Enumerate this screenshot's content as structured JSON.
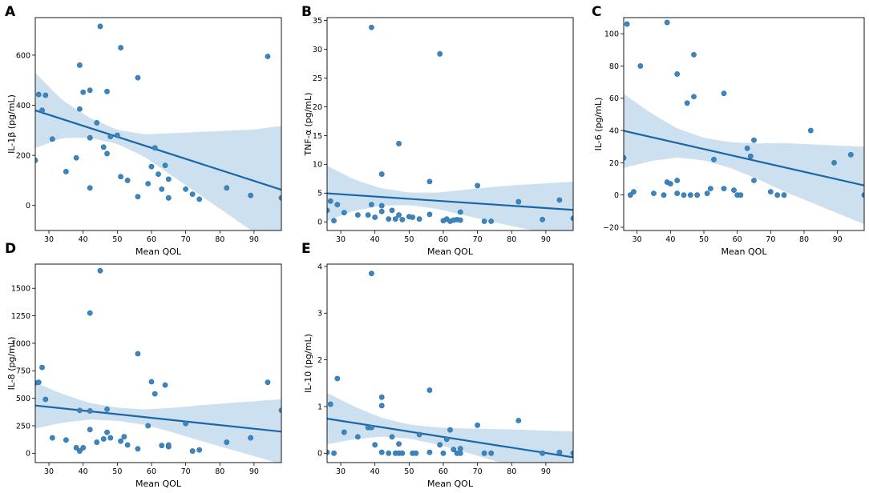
{
  "chart_data": [
    {
      "type": "scatter",
      "panel": "A",
      "xlabel": "Mean QOL",
      "ylabel": "IL-1β (pg/mL)",
      "xlim": [
        26,
        98
      ],
      "ylim": [
        -100,
        750
      ],
      "xticks": [
        30,
        40,
        50,
        60,
        70,
        80,
        90
      ],
      "yticks": [
        0,
        200,
        400,
        600
      ],
      "ytick_labels": [
        "0",
        "200",
        "400",
        "600"
      ],
      "points": [
        [
          26,
          180
        ],
        [
          27,
          443
        ],
        [
          28,
          380
        ],
        [
          29,
          440
        ],
        [
          31,
          265
        ],
        [
          35,
          135
        ],
        [
          38,
          190
        ],
        [
          39,
          560
        ],
        [
          39,
          385
        ],
        [
          40,
          452
        ],
        [
          42,
          460
        ],
        [
          42,
          270
        ],
        [
          42,
          70
        ],
        [
          44,
          330
        ],
        [
          45,
          715
        ],
        [
          46,
          233
        ],
        [
          47,
          455
        ],
        [
          47,
          207
        ],
        [
          48,
          275
        ],
        [
          50,
          280
        ],
        [
          51,
          630
        ],
        [
          51,
          115
        ],
        [
          53,
          100
        ],
        [
          56,
          510
        ],
        [
          56,
          35
        ],
        [
          59,
          87
        ],
        [
          60,
          155
        ],
        [
          61,
          230
        ],
        [
          62,
          125
        ],
        [
          63,
          65
        ],
        [
          64,
          160
        ],
        [
          65,
          105
        ],
        [
          65,
          30
        ],
        [
          70,
          65
        ],
        [
          72,
          45
        ],
        [
          74,
          25
        ],
        [
          82,
          70
        ],
        [
          89,
          40
        ],
        [
          94,
          595
        ],
        [
          98,
          30
        ]
      ],
      "regression": {
        "intercept": 494,
        "slope": -4.4
      },
      "band_halfwidth_data": [
        [
          26,
          150
        ],
        [
          34,
          75
        ],
        [
          42,
          40
        ],
        [
          50,
          28
        ],
        [
          58,
          45
        ],
        [
          66,
          85
        ],
        [
          74,
          125
        ],
        [
          82,
          165
        ],
        [
          90,
          205
        ],
        [
          98,
          255
        ]
      ]
    },
    {
      "type": "scatter",
      "panel": "B",
      "xlabel": "Mean QOL",
      "ylabel": "TNF-α (pg/mL)",
      "xlim": [
        26,
        98
      ],
      "ylim": [
        -1.5,
        35.5
      ],
      "xticks": [
        30,
        40,
        50,
        60,
        70,
        80,
        90
      ],
      "yticks": [
        0,
        5,
        10,
        15,
        20,
        25,
        30,
        35
      ],
      "ytick_labels": [
        "0",
        "5",
        "10",
        "15",
        "20",
        "25",
        "30",
        "35"
      ],
      "points": [
        [
          26,
          2.0
        ],
        [
          27,
          3.6
        ],
        [
          28,
          0.2
        ],
        [
          29,
          3.0
        ],
        [
          31,
          1.6
        ],
        [
          35,
          1.2
        ],
        [
          38,
          1.2
        ],
        [
          39,
          33.8
        ],
        [
          39,
          3.0
        ],
        [
          40,
          0.8
        ],
        [
          42,
          8.3
        ],
        [
          42,
          2.8
        ],
        [
          42,
          1.8
        ],
        [
          44,
          0.5
        ],
        [
          45,
          2.0
        ],
        [
          46,
          0.5
        ],
        [
          47,
          13.6
        ],
        [
          47,
          1.2
        ],
        [
          48,
          0.4
        ],
        [
          50,
          0.9
        ],
        [
          51,
          0.8
        ],
        [
          53,
          0.5
        ],
        [
          56,
          7.0
        ],
        [
          56,
          1.3
        ],
        [
          59,
          29.2
        ],
        [
          60,
          0.2
        ],
        [
          61,
          0.5
        ],
        [
          62,
          0.1
        ],
        [
          63,
          0.3
        ],
        [
          64,
          0.4
        ],
        [
          65,
          1.7
        ],
        [
          65,
          0.3
        ],
        [
          70,
          6.3
        ],
        [
          72,
          0.1
        ],
        [
          74,
          0.1
        ],
        [
          82,
          3.5
        ],
        [
          89,
          0.4
        ],
        [
          94,
          3.8
        ],
        [
          98,
          0.6
        ]
      ],
      "regression": {
        "intercept": 6.0,
        "slope": -0.04
      },
      "band_halfwidth_data": [
        [
          26,
          4.8
        ],
        [
          34,
          2.7
        ],
        [
          42,
          1.5
        ],
        [
          50,
          1.1
        ],
        [
          58,
          1.4
        ],
        [
          66,
          2.2
        ],
        [
          74,
          3.0
        ],
        [
          82,
          3.7
        ],
        [
          90,
          4.3
        ],
        [
          98,
          4.9
        ]
      ]
    },
    {
      "type": "scatter",
      "panel": "C",
      "xlabel": "Mean QOL",
      "ylabel": "IL-6 (pg/mL)",
      "xlim": [
        26,
        98
      ],
      "ylim": [
        -22,
        110
      ],
      "xticks": [
        30,
        40,
        50,
        60,
        70,
        80,
        90
      ],
      "yticks": [
        -20,
        0,
        20,
        40,
        60,
        80,
        100
      ],
      "ytick_labels": [
        "−20",
        "0",
        "20",
        "40",
        "60",
        "80",
        "100"
      ],
      "points": [
        [
          26,
          23
        ],
        [
          27,
          106
        ],
        [
          28,
          0
        ],
        [
          29,
          2
        ],
        [
          31,
          80
        ],
        [
          35,
          1
        ],
        [
          38,
          0
        ],
        [
          39,
          107
        ],
        [
          39,
          8
        ],
        [
          40,
          7
        ],
        [
          42,
          75
        ],
        [
          42,
          9
        ],
        [
          42,
          1
        ],
        [
          44,
          0
        ],
        [
          45,
          57
        ],
        [
          46,
          0
        ],
        [
          47,
          61
        ],
        [
          47,
          87
        ],
        [
          48,
          0
        ],
        [
          51,
          1
        ],
        [
          52,
          4
        ],
        [
          53,
          22
        ],
        [
          56,
          63
        ],
        [
          56,
          4
        ],
        [
          59,
          3
        ],
        [
          60,
          0
        ],
        [
          61,
          0
        ],
        [
          63,
          29
        ],
        [
          64,
          24
        ],
        [
          65,
          34
        ],
        [
          65,
          9
        ],
        [
          70,
          2
        ],
        [
          72,
          0
        ],
        [
          74,
          0
        ],
        [
          82,
          40
        ],
        [
          89,
          20
        ],
        [
          94,
          25
        ],
        [
          98,
          0
        ]
      ],
      "regression": {
        "intercept": 52,
        "slope": -0.47
      },
      "band_halfwidth_data": [
        [
          26,
          23
        ],
        [
          34,
          15
        ],
        [
          42,
          9
        ],
        [
          50,
          7
        ],
        [
          58,
          8
        ],
        [
          66,
          11
        ],
        [
          74,
          15
        ],
        [
          82,
          18
        ],
        [
          90,
          21
        ],
        [
          98,
          24
        ]
      ]
    },
    {
      "type": "scatter",
      "panel": "D",
      "xlabel": "Mean QOL",
      "ylabel": "IL-8 (pg/mL)",
      "xlim": [
        26,
        98
      ],
      "ylim": [
        -85,
        1720
      ],
      "xticks": [
        30,
        40,
        50,
        60,
        70,
        80,
        90
      ],
      "yticks": [
        0,
        250,
        500,
        750,
        1000,
        1250,
        1500
      ],
      "ytick_labels": [
        "0",
        "250",
        "500",
        "750",
        "1000",
        "1250",
        "1500"
      ],
      "points": [
        [
          26,
          640
        ],
        [
          27,
          645
        ],
        [
          28,
          780
        ],
        [
          29,
          490
        ],
        [
          31,
          140
        ],
        [
          35,
          120
        ],
        [
          38,
          50
        ],
        [
          39,
          20
        ],
        [
          39,
          390
        ],
        [
          40,
          50
        ],
        [
          42,
          1275
        ],
        [
          42,
          385
        ],
        [
          42,
          215
        ],
        [
          44,
          100
        ],
        [
          45,
          1660
        ],
        [
          46,
          130
        ],
        [
          47,
          400
        ],
        [
          47,
          190
        ],
        [
          48,
          140
        ],
        [
          51,
          110
        ],
        [
          52,
          150
        ],
        [
          53,
          75
        ],
        [
          56,
          905
        ],
        [
          56,
          40
        ],
        [
          59,
          250
        ],
        [
          60,
          650
        ],
        [
          61,
          540
        ],
        [
          63,
          70
        ],
        [
          64,
          620
        ],
        [
          65,
          60
        ],
        [
          65,
          75
        ],
        [
          70,
          270
        ],
        [
          72,
          20
        ],
        [
          74,
          30
        ],
        [
          82,
          100
        ],
        [
          89,
          140
        ],
        [
          94,
          645
        ],
        [
          98,
          390
        ]
      ],
      "regression": {
        "intercept": 520,
        "slope": -3.3
      },
      "band_halfwidth_data": [
        [
          26,
          210
        ],
        [
          34,
          130
        ],
        [
          42,
          75
        ],
        [
          50,
          60
        ],
        [
          58,
          70
        ],
        [
          66,
          110
        ],
        [
          74,
          160
        ],
        [
          82,
          205
        ],
        [
          90,
          250
        ],
        [
          98,
          295
        ]
      ]
    },
    {
      "type": "scatter",
      "panel": "E",
      "xlabel": "Mean QOL",
      "ylabel": "IL-10 (pg/mL)",
      "xlim": [
        26,
        98
      ],
      "ylim": [
        -0.2,
        4.05
      ],
      "xticks": [
        30,
        40,
        50,
        60,
        70,
        80,
        90
      ],
      "yticks": [
        0,
        1,
        2,
        3,
        4
      ],
      "ytick_labels": [
        "0",
        "1",
        "2",
        "3",
        "4"
      ],
      "points": [
        [
          26,
          0.02
        ],
        [
          27,
          1.05
        ],
        [
          28,
          0.0
        ],
        [
          29,
          1.6
        ],
        [
          31,
          0.45
        ],
        [
          35,
          0.35
        ],
        [
          38,
          0.55
        ],
        [
          39,
          3.85
        ],
        [
          39,
          0.55
        ],
        [
          40,
          0.18
        ],
        [
          42,
          1.2
        ],
        [
          42,
          1.02
        ],
        [
          42,
          0.02
        ],
        [
          44,
          0.0
        ],
        [
          45,
          0.35
        ],
        [
          46,
          0.0
        ],
        [
          47,
          0.2
        ],
        [
          47,
          0.0
        ],
        [
          48,
          0.0
        ],
        [
          51,
          0.0
        ],
        [
          52,
          0.0
        ],
        [
          53,
          0.4
        ],
        [
          56,
          1.35
        ],
        [
          56,
          0.02
        ],
        [
          59,
          0.18
        ],
        [
          60,
          0.0
        ],
        [
          61,
          0.3
        ],
        [
          62,
          0.5
        ],
        [
          63,
          0.08
        ],
        [
          64,
          0.0
        ],
        [
          65,
          0.1
        ],
        [
          65,
          0.0
        ],
        [
          70,
          0.6
        ],
        [
          72,
          0.0
        ],
        [
          74,
          0.0
        ],
        [
          82,
          0.7
        ],
        [
          89,
          0.0
        ],
        [
          94,
          0.02
        ],
        [
          98,
          0.0
        ]
      ],
      "regression": {
        "intercept": 1.04,
        "slope": -0.0115
      },
      "band_halfwidth_data": [
        [
          26,
          0.55
        ],
        [
          34,
          0.35
        ],
        [
          42,
          0.2
        ],
        [
          50,
          0.15
        ],
        [
          58,
          0.18
        ],
        [
          66,
          0.25
        ],
        [
          74,
          0.33
        ],
        [
          82,
          0.41
        ],
        [
          90,
          0.48
        ],
        [
          98,
          0.55
        ]
      ]
    }
  ],
  "style": {
    "point_fill": "#3c86bf",
    "point_stroke": "#2c6ea6",
    "line_color": "#1a66a6",
    "band_color": "#bcd5ea"
  }
}
